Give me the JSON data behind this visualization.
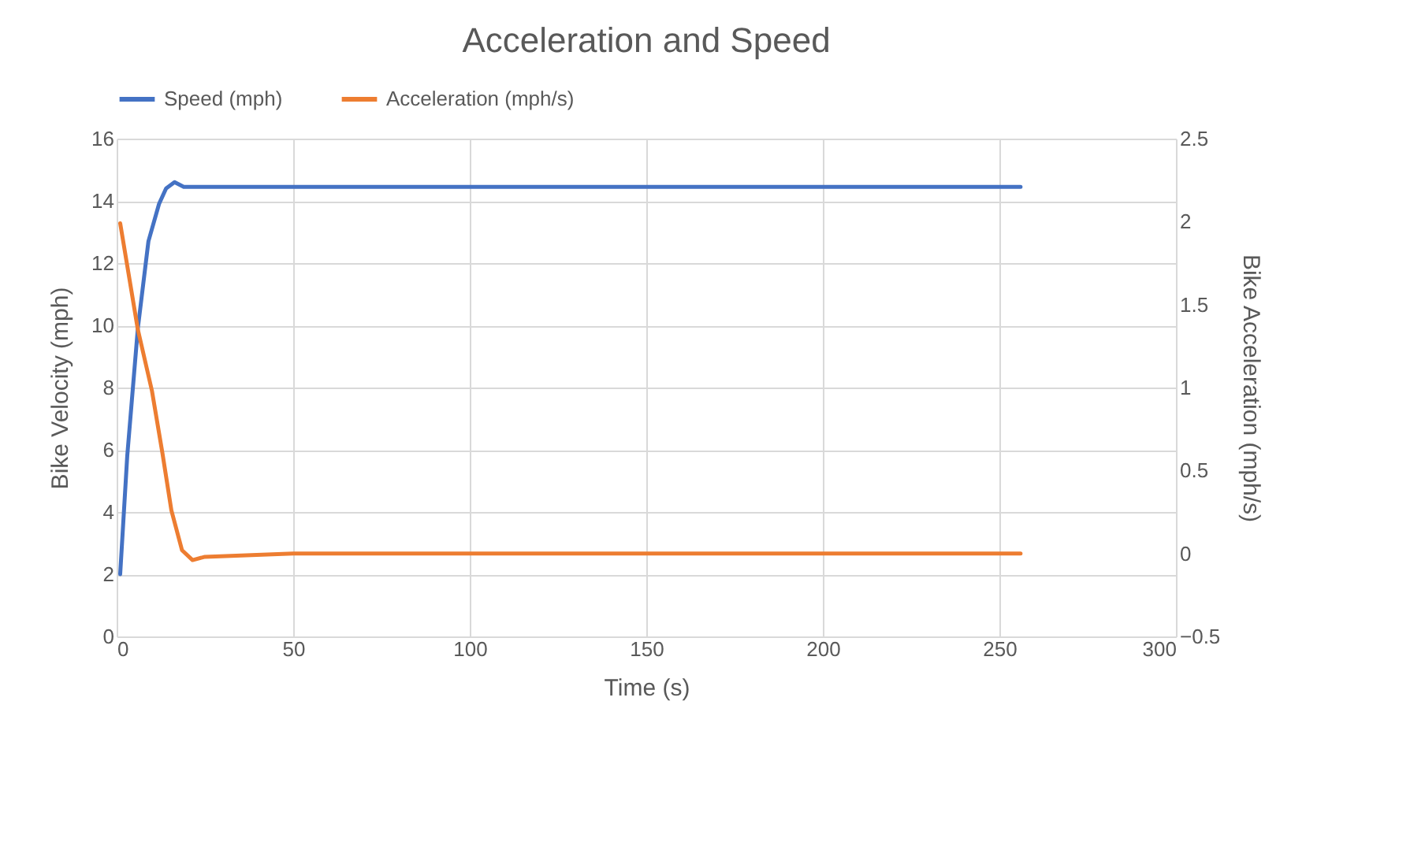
{
  "chart_data": {
    "type": "line",
    "title": "Acceleration and Speed",
    "xlabel": "Time (s)",
    "ylabel": "Bike Velocity (mph)",
    "y2label": "Bike Acceleration (mph/s)",
    "xlim": [
      0,
      300
    ],
    "xticks": [
      0,
      50,
      100,
      150,
      200,
      250,
      300
    ],
    "ylim": [
      0,
      16
    ],
    "yticks": [
      0,
      2,
      4,
      6,
      8,
      10,
      12,
      14,
      16
    ],
    "y2lim": [
      -0.5,
      2.5
    ],
    "y2ticks": [
      -0.5,
      0,
      0.5,
      1,
      1.5,
      2,
      2.5
    ],
    "grid": true,
    "legend": "top",
    "marker": "none",
    "line_style": "solid",
    "series": [
      {
        "name": "Speed (mph)",
        "color": "#4472c4",
        "x": [
          1,
          3,
          6,
          9,
          12,
          14,
          16.4,
          19,
          50,
          100,
          150,
          200,
          256
        ],
        "values": [
          2,
          5.8,
          9.9,
          12.7,
          13.9,
          14.4,
          14.6,
          14.45,
          14.45,
          14.45,
          14.45,
          14.45,
          14.45
        ]
      },
      {
        "name": "Acceleration (mph/s)",
        "color": "#ed7d31",
        "axis": "y2",
        "x": [
          1,
          6,
          10,
          13,
          15.5,
          18.5,
          21.5,
          25,
          50,
          100,
          150,
          200,
          256
        ],
        "values": [
          1.99,
          1.35,
          0.98,
          0.6,
          0.26,
          0.02,
          -0.04,
          -0.02,
          0,
          0,
          0,
          0,
          0
        ]
      }
    ]
  }
}
